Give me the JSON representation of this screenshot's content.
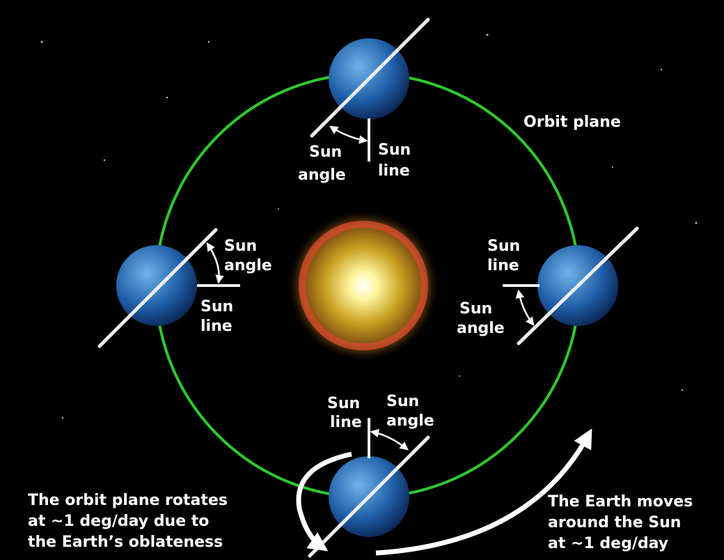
{
  "orbit_label": "Orbit plane",
  "earths": [
    {
      "sun_angle": [
        "Sun",
        "angle"
      ],
      "sun_line": [
        "Sun",
        "line"
      ]
    },
    {
      "sun_angle": [
        "Sun",
        "angle"
      ],
      "sun_line": [
        "Sun",
        "line"
      ]
    },
    {
      "sun_angle": [
        "Sun",
        "angle"
      ],
      "sun_line": [
        "Sun",
        "line"
      ]
    },
    {
      "sun_angle": [
        "Sun",
        "angle"
      ],
      "sun_line": [
        "Sun",
        "line"
      ]
    }
  ],
  "captions": {
    "left": [
      "The orbit plane rotates",
      "at ~1 deg/day due to",
      "the Earth’s oblateness"
    ],
    "right": [
      "The Earth moves",
      "around the Sun",
      "at ~1 deg/day"
    ]
  }
}
